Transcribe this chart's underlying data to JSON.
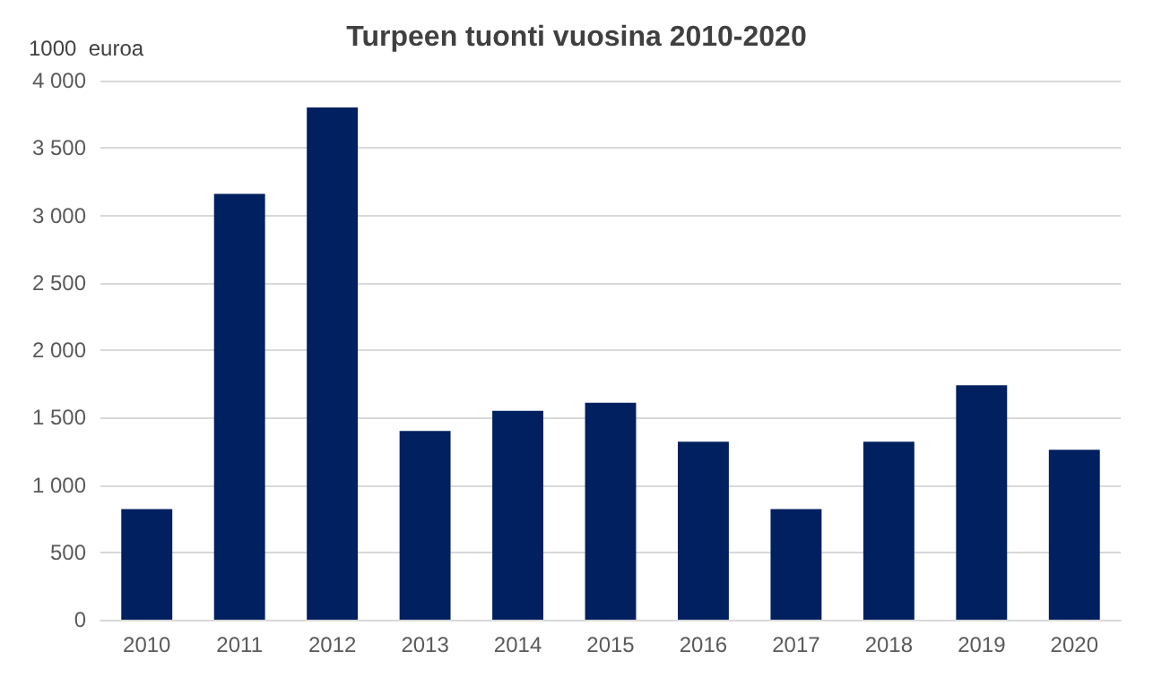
{
  "chart_data": {
    "type": "bar",
    "title": "Turpeen tuonti vuosina 2010-2020",
    "ylabel": "1000  euroa",
    "categories": [
      "2010",
      "2011",
      "2012",
      "2013",
      "2014",
      "2015",
      "2016",
      "2017",
      "2018",
      "2019",
      "2020"
    ],
    "values": [
      820,
      3160,
      3800,
      1400,
      1550,
      1610,
      1320,
      820,
      1320,
      1740,
      1260
    ],
    "color": "#002060",
    "ylim": [
      0,
      4000
    ],
    "yticks": [
      0,
      500,
      {
        "value": 1000,
        "label": "1 000"
      },
      {
        "value": 1500,
        "label": "1 500"
      },
      {
        "value": 2000,
        "label": "2 000"
      },
      {
        "value": 2500,
        "label": "2 500"
      },
      {
        "value": 3000,
        "label": "3 000"
      },
      {
        "value": 3500,
        "label": "3 500"
      },
      {
        "value": 4000,
        "label": "4 000"
      }
    ],
    "grid": "y"
  }
}
